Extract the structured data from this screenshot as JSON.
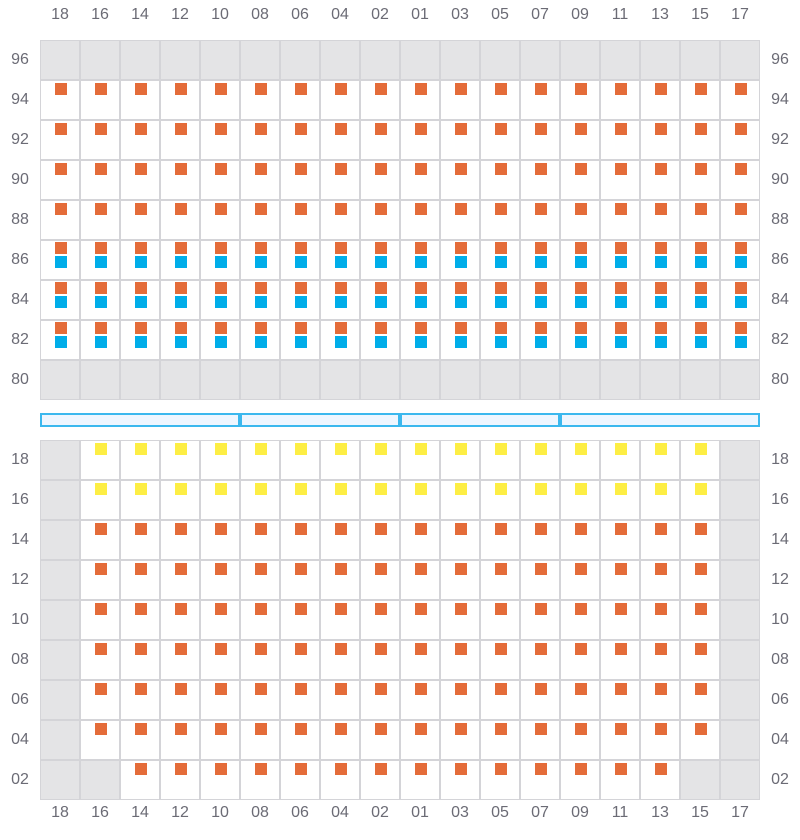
{
  "columns": [
    "18",
    "16",
    "14",
    "12",
    "10",
    "08",
    "06",
    "04",
    "02",
    "01",
    "03",
    "05",
    "07",
    "09",
    "11",
    "13",
    "15",
    "17"
  ],
  "legend_colors": {
    "O": "#e46c39",
    "B": "#00ade9",
    "Y": "#fdee44",
    "X": "#e4e4e6"
  },
  "top_section": {
    "rows": [
      {
        "label": "96",
        "cells": [
          "X",
          "X",
          "X",
          "X",
          "X",
          "X",
          "X",
          "X",
          "X",
          "X",
          "X",
          "X",
          "X",
          "X",
          "X",
          "X",
          "X",
          "X"
        ]
      },
      {
        "label": "94",
        "cells": [
          "O",
          "O",
          "O",
          "O",
          "O",
          "O",
          "O",
          "O",
          "O",
          "O",
          "O",
          "O",
          "O",
          "O",
          "O",
          "O",
          "O",
          "O"
        ]
      },
      {
        "label": "92",
        "cells": [
          "O",
          "O",
          "O",
          "O",
          "O",
          "O",
          "O",
          "O",
          "O",
          "O",
          "O",
          "O",
          "O",
          "O",
          "O",
          "O",
          "O",
          "O"
        ]
      },
      {
        "label": "90",
        "cells": [
          "O",
          "O",
          "O",
          "O",
          "O",
          "O",
          "O",
          "O",
          "O",
          "O",
          "O",
          "O",
          "O",
          "O",
          "O",
          "O",
          "O",
          "O"
        ]
      },
      {
        "label": "88",
        "cells": [
          "O",
          "O",
          "O",
          "O",
          "O",
          "O",
          "O",
          "O",
          "O",
          "O",
          "O",
          "O",
          "O",
          "O",
          "O",
          "O",
          "O",
          "O"
        ]
      },
      {
        "label": "86",
        "cells": [
          "OB",
          "OB",
          "OB",
          "OB",
          "OB",
          "OB",
          "OB",
          "OB",
          "OB",
          "OB",
          "OB",
          "OB",
          "OB",
          "OB",
          "OB",
          "OB",
          "OB",
          "OB"
        ]
      },
      {
        "label": "84",
        "cells": [
          "OB",
          "OB",
          "OB",
          "OB",
          "OB",
          "OB",
          "OB",
          "OB",
          "OB",
          "OB",
          "OB",
          "OB",
          "OB",
          "OB",
          "OB",
          "OB",
          "OB",
          "OB"
        ]
      },
      {
        "label": "82",
        "cells": [
          "OB",
          "OB",
          "OB",
          "OB",
          "OB",
          "OB",
          "OB",
          "OB",
          "OB",
          "OB",
          "OB",
          "OB",
          "OB",
          "OB",
          "OB",
          "OB",
          "OB",
          "OB"
        ]
      },
      {
        "label": "80",
        "cells": [
          "X",
          "X",
          "X",
          "X",
          "X",
          "X",
          "X",
          "X",
          "X",
          "X",
          "X",
          "X",
          "X",
          "X",
          "X",
          "X",
          "X",
          "X"
        ]
      }
    ]
  },
  "divider_segments": 4,
  "bottom_section": {
    "rows": [
      {
        "label": "18",
        "cells": [
          "X",
          "Y",
          "Y",
          "Y",
          "Y",
          "Y",
          "Y",
          "Y",
          "Y",
          "Y",
          "Y",
          "Y",
          "Y",
          "Y",
          "Y",
          "Y",
          "Y",
          "X"
        ]
      },
      {
        "label": "16",
        "cells": [
          "X",
          "Y",
          "Y",
          "Y",
          "Y",
          "Y",
          "Y",
          "Y",
          "Y",
          "Y",
          "Y",
          "Y",
          "Y",
          "Y",
          "Y",
          "Y",
          "Y",
          "X"
        ]
      },
      {
        "label": "14",
        "cells": [
          "X",
          "O",
          "O",
          "O",
          "O",
          "O",
          "O",
          "O",
          "O",
          "O",
          "O",
          "O",
          "O",
          "O",
          "O",
          "O",
          "O",
          "X"
        ]
      },
      {
        "label": "12",
        "cells": [
          "X",
          "O",
          "O",
          "O",
          "O",
          "O",
          "O",
          "O",
          "O",
          "O",
          "O",
          "O",
          "O",
          "O",
          "O",
          "O",
          "O",
          "X"
        ]
      },
      {
        "label": "10",
        "cells": [
          "X",
          "O",
          "O",
          "O",
          "O",
          "O",
          "O",
          "O",
          "O",
          "O",
          "O",
          "O",
          "O",
          "O",
          "O",
          "O",
          "O",
          "X"
        ]
      },
      {
        "label": "08",
        "cells": [
          "X",
          "O",
          "O",
          "O",
          "O",
          "O",
          "O",
          "O",
          "O",
          "O",
          "O",
          "O",
          "O",
          "O",
          "O",
          "O",
          "O",
          "X"
        ]
      },
      {
        "label": "06",
        "cells": [
          "X",
          "O",
          "O",
          "O",
          "O",
          "O",
          "O",
          "O",
          "O",
          "O",
          "O",
          "O",
          "O",
          "O",
          "O",
          "O",
          "O",
          "X"
        ]
      },
      {
        "label": "04",
        "cells": [
          "X",
          "O",
          "O",
          "O",
          "O",
          "O",
          "O",
          "O",
          "O",
          "O",
          "O",
          "O",
          "O",
          "O",
          "O",
          "O",
          "O",
          "X"
        ]
      },
      {
        "label": "02",
        "cells": [
          "X",
          "X",
          "O",
          "O",
          "O",
          "O",
          "O",
          "O",
          "O",
          "O",
          "O",
          "O",
          "O",
          "O",
          "O",
          "O",
          "X",
          "X"
        ]
      }
    ]
  }
}
